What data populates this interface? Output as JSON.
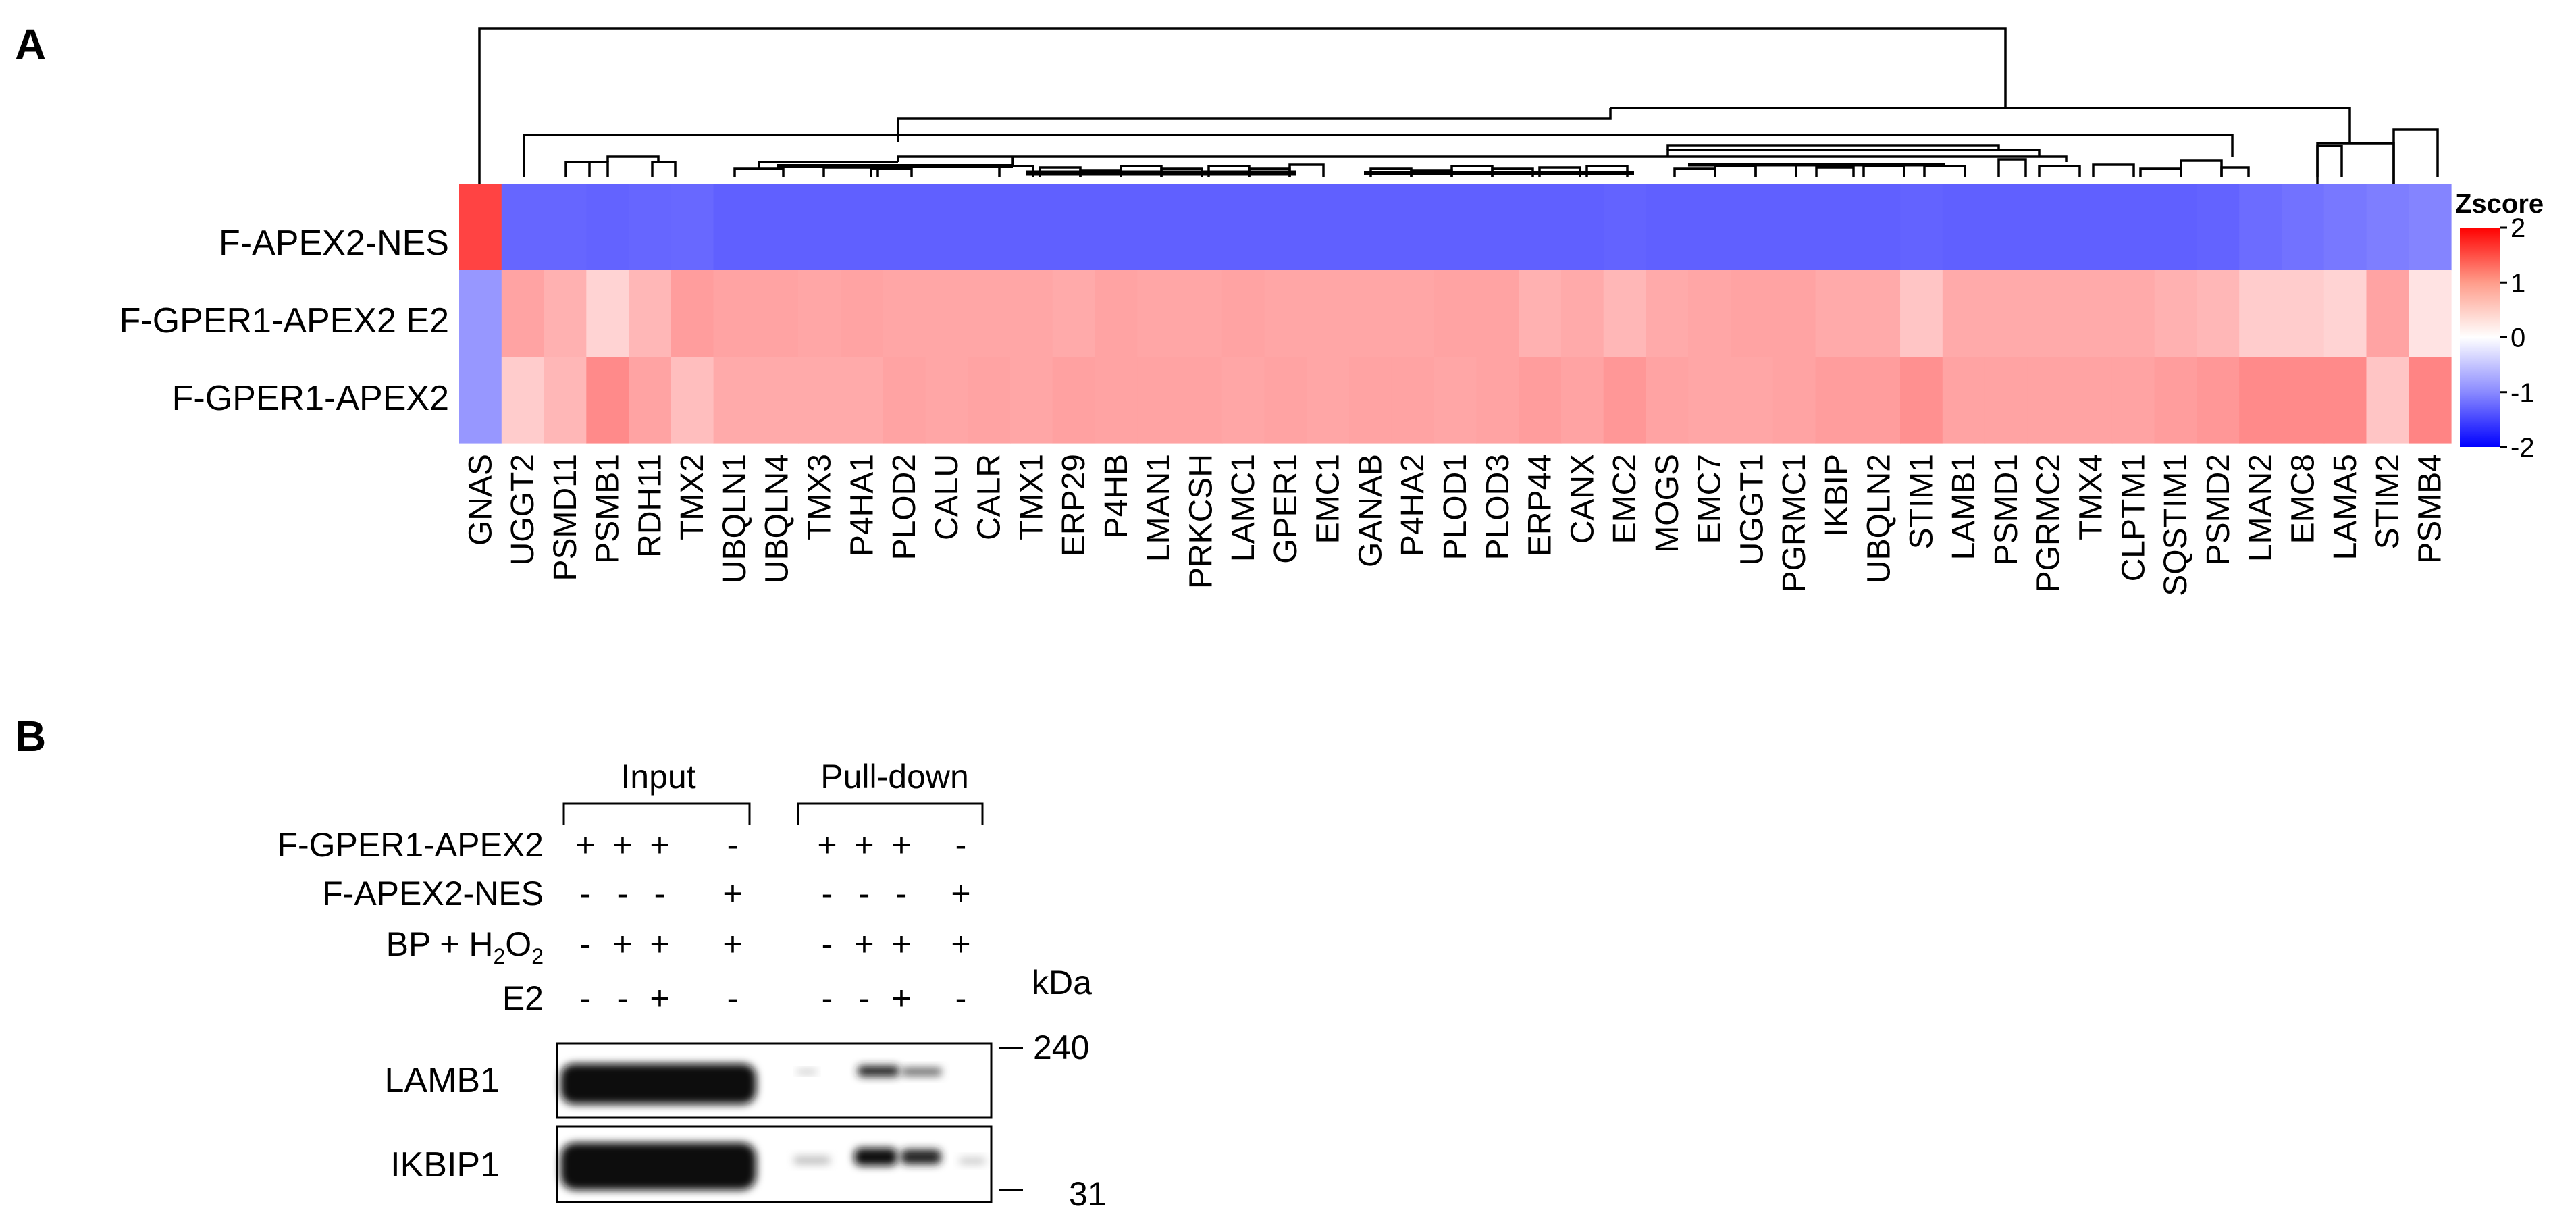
{
  "panel_a": {
    "label": "A",
    "row_labels": [
      "F-APEX2-NES",
      "F-GPER1-APEX2 E2",
      "F-GPER1-APEX2"
    ],
    "column_labels": [
      "GNAS",
      "UGGT2",
      "PSMD11",
      "PSMB1",
      "RDH11",
      "TMX2",
      "UBQLN1",
      "UBQLN4",
      "TMX3",
      "P4HA1",
      "PLOD2",
      "CALU",
      "CALR",
      "TMX1",
      "ERP29",
      "P4HB",
      "LMAN1",
      "PRKCSH",
      "LAMC1",
      "GPER1",
      "EMC1",
      "GANAB",
      "P4HA2",
      "PLOD1",
      "PLOD3",
      "ERP44",
      "CANX",
      "EMC2",
      "MOGS",
      "EMC7",
      "UGGT1",
      "PGRMC1",
      "IKBIP",
      "UBQLN2",
      "STIM1",
      "LAMB1",
      "PSMD1",
      "PGRMC2",
      "TMX4",
      "CLPTM1",
      "SQSTIM1",
      "PSMD2",
      "LMAN2",
      "EMC8",
      "LAMA5",
      "STIM2",
      "PSMB4"
    ],
    "legend_title": "Zscore",
    "colors": {
      "high": "#ff0000",
      "mid": "#ffffff",
      "low": "#0000ff"
    }
  },
  "chart_data": {
    "type": "heatmap",
    "title": "",
    "rows": [
      "F-APEX2-NES",
      "F-GPER1-APEX2 E2",
      "F-GPER1-APEX2"
    ],
    "columns": [
      "GNAS",
      "UGGT2",
      "PSMD11",
      "PSMB1",
      "RDH11",
      "TMX2",
      "UBQLN1",
      "UBQLN4",
      "TMX3",
      "P4HA1",
      "PLOD2",
      "CALU",
      "CALR",
      "TMX1",
      "ERP29",
      "P4HB",
      "LMAN1",
      "PRKCSH",
      "LAMC1",
      "GPER1",
      "EMC1",
      "GANAB",
      "P4HA2",
      "PLOD1",
      "PLOD3",
      "ERP44",
      "CANX",
      "EMC2",
      "MOGS",
      "EMC7",
      "UGGT1",
      "PGRMC1",
      "IKBIP",
      "UBQLN2",
      "STIM1",
      "LAMB1",
      "PSMD1",
      "PGRMC2",
      "TMX4",
      "CLPTM1",
      "SQSTIM1",
      "PSMD2",
      "LMAN2",
      "EMC8",
      "LAMA5",
      "STIM2",
      "PSMB4"
    ],
    "values": [
      [
        1.4,
        -1.1,
        -1.1,
        -1.12,
        -1.1,
        -1.08,
        -1.15,
        -1.15,
        -1.15,
        -1.15,
        -1.15,
        -1.15,
        -1.15,
        -1.15,
        -1.15,
        -1.15,
        -1.15,
        -1.15,
        -1.15,
        -1.15,
        -1.15,
        -1.15,
        -1.15,
        -1.15,
        -1.15,
        -1.15,
        -1.15,
        -1.12,
        -1.15,
        -1.15,
        -1.15,
        -1.15,
        -1.15,
        -1.15,
        -1.12,
        -1.15,
        -1.15,
        -1.15,
        -1.15,
        -1.15,
        -1.15,
        -1.12,
        -1.05,
        -1.0,
        -0.95,
        -0.9,
        -0.85
      ],
      [
        -0.7,
        0.6,
        0.5,
        0.25,
        0.45,
        0.65,
        0.6,
        0.6,
        0.58,
        0.6,
        0.58,
        0.58,
        0.58,
        0.58,
        0.55,
        0.6,
        0.58,
        0.58,
        0.6,
        0.58,
        0.58,
        0.58,
        0.58,
        0.6,
        0.6,
        0.5,
        0.55,
        0.45,
        0.55,
        0.58,
        0.6,
        0.6,
        0.55,
        0.55,
        0.35,
        0.55,
        0.55,
        0.55,
        0.55,
        0.55,
        0.5,
        0.45,
        0.3,
        0.3,
        0.25,
        0.6,
        0.15
      ],
      [
        -0.7,
        0.3,
        0.45,
        0.8,
        0.6,
        0.4,
        0.55,
        0.55,
        0.55,
        0.55,
        0.6,
        0.58,
        0.6,
        0.58,
        0.62,
        0.6,
        0.6,
        0.6,
        0.58,
        0.6,
        0.58,
        0.6,
        0.6,
        0.58,
        0.6,
        0.65,
        0.6,
        0.7,
        0.6,
        0.58,
        0.58,
        0.6,
        0.65,
        0.65,
        0.75,
        0.6,
        0.6,
        0.6,
        0.6,
        0.6,
        0.65,
        0.7,
        0.8,
        0.8,
        0.8,
        0.35,
        0.85
      ]
    ],
    "colorbar": {
      "label": "Zscore",
      "range": [
        -2,
        2
      ],
      "ticks": [
        "2",
        "1",
        "0",
        "-1",
        "-2"
      ]
    }
  },
  "panel_b": {
    "label": "B",
    "group_input": "Input",
    "group_pulldown": "Pull-down",
    "conditions": [
      {
        "label": "F-GPER1-APEX2",
        "input": [
          "+",
          "+",
          "+",
          "-"
        ],
        "pulldown": [
          "+",
          "+",
          "+",
          "-"
        ]
      },
      {
        "label": "F-APEX2-NES",
        "input": [
          "-",
          "-",
          "-",
          "+"
        ],
        "pulldown": [
          "-",
          "-",
          "-",
          "+"
        ]
      },
      {
        "label_main": "BP + H",
        "label_sub1": "2",
        "label_mid": "O",
        "label_sub2": "2",
        "input": [
          "-",
          "+",
          "+",
          "+"
        ],
        "pulldown": [
          "-",
          "+",
          "+",
          "+"
        ]
      },
      {
        "label": "E2",
        "input": [
          "-",
          "-",
          "+",
          "-"
        ],
        "pulldown": [
          "-",
          "-",
          "+",
          "-"
        ]
      }
    ],
    "blots": [
      {
        "label": "LAMB1",
        "marker": "240"
      },
      {
        "label": "IKBIP1",
        "marker": "31"
      }
    ],
    "kda_label": "kDa"
  }
}
